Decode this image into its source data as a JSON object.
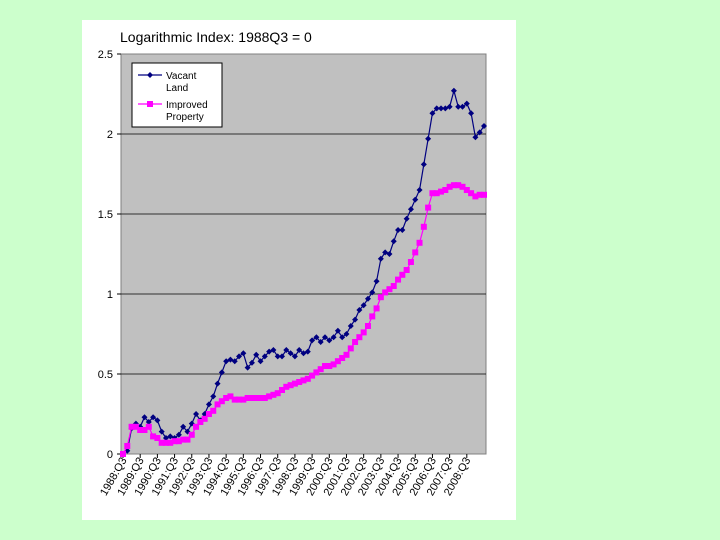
{
  "chart_data": {
    "type": "line",
    "title": "Logarithmic Index: 1988Q3 = 0",
    "xlabel": "",
    "ylabel": "",
    "ylim": [
      0,
      2.5
    ],
    "yticks": [
      "0",
      "0.5",
      "1",
      "1.5",
      "2",
      "2.5"
    ],
    "grid": "horizontal",
    "legend": "top-left",
    "x_tick_labels": [
      "1988:Q3",
      "1989:Q3",
      "1990:Q3",
      "1991:Q3",
      "1992:Q3",
      "1993:Q3",
      "1994:Q3",
      "1995:Q3",
      "1996:Q3",
      "1997:Q3",
      "1998:Q3",
      "1999:Q3",
      "2000:Q3",
      "2001:Q3",
      "2002:Q3",
      "2003:Q3",
      "2004:Q3",
      "2005:Q3",
      "2006:Q3",
      "2007:Q3",
      "2008:Q3"
    ],
    "plot_background": "#c0c0c0",
    "series": [
      {
        "name": "Vacant Land",
        "color": "#000080",
        "marker": "diamond",
        "values": [
          0.0,
          0.02,
          0.16,
          0.19,
          0.17,
          0.23,
          0.2,
          0.23,
          0.21,
          0.14,
          0.1,
          0.11,
          0.1,
          0.12,
          0.17,
          0.14,
          0.19,
          0.25,
          0.21,
          0.25,
          0.31,
          0.36,
          0.44,
          0.51,
          0.58,
          0.59,
          0.58,
          0.61,
          0.63,
          0.54,
          0.57,
          0.62,
          0.58,
          0.61,
          0.64,
          0.65,
          0.61,
          0.61,
          0.65,
          0.63,
          0.61,
          0.65,
          0.63,
          0.64,
          0.71,
          0.73,
          0.7,
          0.73,
          0.71,
          0.73,
          0.77,
          0.73,
          0.75,
          0.8,
          0.84,
          0.9,
          0.93,
          0.97,
          1.01,
          1.08,
          1.22,
          1.26,
          1.25,
          1.33,
          1.4,
          1.4,
          1.47,
          1.53,
          1.59,
          1.65,
          1.81,
          1.97,
          2.13,
          2.16,
          2.16,
          2.16,
          2.17,
          2.27,
          2.17,
          2.17,
          2.19,
          2.13,
          1.98,
          2.01,
          2.05
        ]
      },
      {
        "name": "Improved Property",
        "color": "#ff00ff",
        "marker": "square",
        "values": [
          0.0,
          0.05,
          0.17,
          0.17,
          0.15,
          0.15,
          0.17,
          0.11,
          0.1,
          0.07,
          0.07,
          0.07,
          0.08,
          0.08,
          0.09,
          0.09,
          0.12,
          0.17,
          0.2,
          0.22,
          0.25,
          0.27,
          0.31,
          0.33,
          0.35,
          0.36,
          0.34,
          0.34,
          0.34,
          0.35,
          0.35,
          0.35,
          0.35,
          0.35,
          0.36,
          0.37,
          0.38,
          0.4,
          0.42,
          0.43,
          0.44,
          0.45,
          0.46,
          0.47,
          0.49,
          0.51,
          0.53,
          0.55,
          0.55,
          0.56,
          0.58,
          0.6,
          0.62,
          0.66,
          0.7,
          0.73,
          0.76,
          0.8,
          0.86,
          0.91,
          0.98,
          1.01,
          1.03,
          1.05,
          1.09,
          1.12,
          1.15,
          1.2,
          1.26,
          1.32,
          1.42,
          1.54,
          1.63,
          1.63,
          1.64,
          1.65,
          1.67,
          1.68,
          1.68,
          1.67,
          1.65,
          1.63,
          1.61,
          1.62,
          1.62
        ]
      }
    ]
  }
}
